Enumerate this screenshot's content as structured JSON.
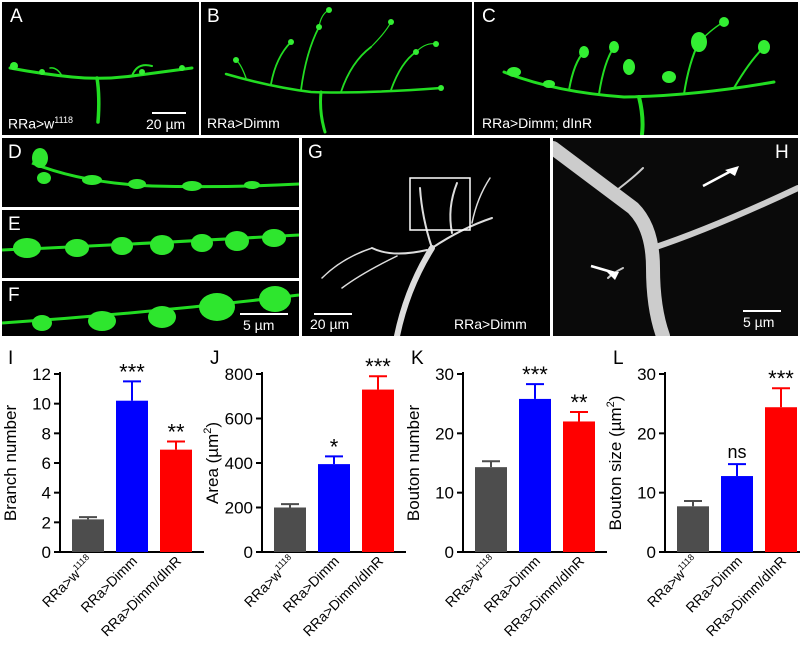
{
  "panels": {
    "A": {
      "letter": "A",
      "caption": "RRa>w",
      "caption_sup": "1118",
      "scale": "20 µm"
    },
    "B": {
      "letter": "B",
      "caption": "RRa>Dimm"
    },
    "C": {
      "letter": "C",
      "caption": "RRa>Dimm; dInR"
    },
    "D": {
      "letter": "D"
    },
    "E": {
      "letter": "E"
    },
    "F": {
      "letter": "F",
      "scale": "5 µm"
    },
    "G": {
      "letter": "G",
      "caption": "RRa>Dimm",
      "scale": "20 µm"
    },
    "H": {
      "letter": "H",
      "scale": "5 µm"
    }
  },
  "colors": {
    "wt": "#4d4d4d",
    "dimm": "#0000ff",
    "dinr": "#ff0000",
    "neuron": "#22dd22"
  },
  "chart_data": [
    {
      "letter": "I",
      "type": "bar",
      "ylabel": "Branch number",
      "ylabel_sup": "",
      "ylabel_suffix": "",
      "ylim": [
        0,
        12
      ],
      "ticks": [
        0,
        2,
        4,
        6,
        8,
        10,
        12
      ],
      "categories": [
        "RRa>w1118",
        "RRa>Dimm",
        "RRa>Dimm/dInR"
      ],
      "values": [
        2.2,
        10.2,
        6.9
      ],
      "errors": [
        0.15,
        1.3,
        0.55
      ],
      "sig": [
        "",
        "***",
        "**"
      ]
    },
    {
      "letter": "J",
      "type": "bar",
      "ylabel": "Area (µm",
      "ylabel_sup": "2",
      "ylabel_suffix": ")",
      "ylim": [
        0,
        800
      ],
      "ticks": [
        0,
        200,
        400,
        600,
        800
      ],
      "categories": [
        "RRa>w1118",
        "RRa>Dimm",
        "RRa>Dimm/dInR"
      ],
      "values": [
        200,
        395,
        730
      ],
      "errors": [
        15,
        35,
        60
      ],
      "sig": [
        "",
        "*",
        "***"
      ]
    },
    {
      "letter": "K",
      "type": "bar",
      "ylabel": "Bouton number",
      "ylabel_sup": "",
      "ylabel_suffix": "",
      "ylim": [
        0,
        30
      ],
      "ticks": [
        0,
        10,
        20,
        30
      ],
      "categories": [
        "RRa>w1118",
        "RRa>Dimm",
        "RRa>Dimm/dInR"
      ],
      "values": [
        14.3,
        25.8,
        22.0
      ],
      "errors": [
        1.0,
        2.5,
        1.6
      ],
      "sig": [
        "",
        "***",
        "**"
      ]
    },
    {
      "letter": "L",
      "type": "bar",
      "ylabel": "Bouton size (µm",
      "ylabel_sup": "2",
      "ylabel_suffix": ")",
      "ylim": [
        0,
        30
      ],
      "ticks": [
        0,
        10,
        20,
        30
      ],
      "categories": [
        "RRa>w1118",
        "RRa>Dimm",
        "RRa>Dimm/dInR"
      ],
      "values": [
        7.7,
        12.8,
        24.4
      ],
      "errors": [
        0.9,
        2.0,
        3.2
      ],
      "sig": [
        "",
        "ns",
        "***"
      ]
    }
  ]
}
